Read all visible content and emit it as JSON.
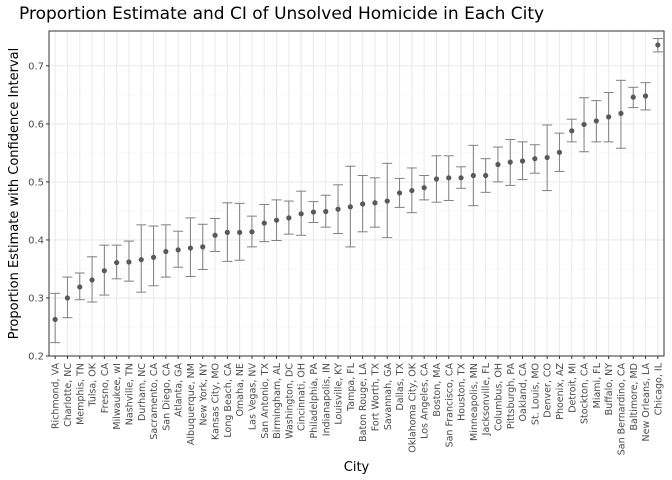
{
  "chart_data": {
    "type": "scatter",
    "title": "Proportion Estimate and CI of Unsolved Homicide in Each City",
    "xlabel": "City",
    "ylabel": "Proportion Estimate with Confidence Interval",
    "ylim": [
      0.2,
      0.76
    ],
    "yticks": [
      "0.2",
      "0.3",
      "0.4",
      "0.5",
      "0.6",
      "0.7"
    ],
    "grid": true,
    "error_bars": true,
    "colors": {
      "point": "#595959",
      "errorbar": "#808080",
      "panel_border": "#333333",
      "grid_major": "#ebebeb",
      "grid_minor": "#f5f5f5"
    },
    "points": [
      {
        "city": "Richmond, VA",
        "estimate": 0.263,
        "lower": 0.223,
        "upper": 0.308
      },
      {
        "city": "Charlotte, NC",
        "estimate": 0.3,
        "lower": 0.266,
        "upper": 0.336
      },
      {
        "city": "Memphis, TN",
        "estimate": 0.319,
        "lower": 0.297,
        "upper": 0.343
      },
      {
        "city": "Tulsa, OK",
        "estimate": 0.331,
        "lower": 0.293,
        "upper": 0.371
      },
      {
        "city": "Fresno, CA",
        "estimate": 0.347,
        "lower": 0.305,
        "upper": 0.391
      },
      {
        "city": "Milwaukee, wI",
        "estimate": 0.361,
        "lower": 0.333,
        "upper": 0.391
      },
      {
        "city": "Nashville, TN",
        "estimate": 0.362,
        "lower": 0.329,
        "upper": 0.398
      },
      {
        "city": "Durham, NC",
        "estimate": 0.366,
        "lower": 0.31,
        "upper": 0.426
      },
      {
        "city": "Sacramento, CA",
        "estimate": 0.37,
        "lower": 0.321,
        "upper": 0.424
      },
      {
        "city": "San Diego, CA",
        "estimate": 0.38,
        "lower": 0.336,
        "upper": 0.426
      },
      {
        "city": "Atlanta, GA",
        "estimate": 0.383,
        "lower": 0.353,
        "upper": 0.415
      },
      {
        "city": "Albuquerque, NM",
        "estimate": 0.386,
        "lower": 0.337,
        "upper": 0.438
      },
      {
        "city": "New York, NY",
        "estimate": 0.388,
        "lower": 0.349,
        "upper": 0.427
      },
      {
        "city": "Kansas City, MO",
        "estimate": 0.408,
        "lower": 0.38,
        "upper": 0.437
      },
      {
        "city": "Long Beach, CA",
        "estimate": 0.413,
        "lower": 0.363,
        "upper": 0.464
      },
      {
        "city": "Omaha, NE",
        "estimate": 0.413,
        "lower": 0.365,
        "upper": 0.463
      },
      {
        "city": "Las Vegas, NV",
        "estimate": 0.414,
        "lower": 0.388,
        "upper": 0.441
      },
      {
        "city": "San Antonio, TX",
        "estimate": 0.429,
        "lower": 0.397,
        "upper": 0.461
      },
      {
        "city": "Birmingham, AL",
        "estimate": 0.434,
        "lower": 0.399,
        "upper": 0.469
      },
      {
        "city": "Washington, DC",
        "estimate": 0.438,
        "lower": 0.41,
        "upper": 0.467
      },
      {
        "city": "Cincinnati, OH",
        "estimate": 0.445,
        "lower": 0.408,
        "upper": 0.484
      },
      {
        "city": "Philadelphia, PA",
        "estimate": 0.448,
        "lower": 0.43,
        "upper": 0.466
      },
      {
        "city": "Indianapolis, IN",
        "estimate": 0.449,
        "lower": 0.422,
        "upper": 0.477
      },
      {
        "city": "Louisville, KY",
        "estimate": 0.453,
        "lower": 0.411,
        "upper": 0.495
      },
      {
        "city": "Tampa, FL",
        "estimate": 0.457,
        "lower": 0.388,
        "upper": 0.527
      },
      {
        "city": "Baton Rouge, LA",
        "estimate": 0.462,
        "lower": 0.414,
        "upper": 0.511
      },
      {
        "city": "Fort Worth, TX",
        "estimate": 0.464,
        "lower": 0.422,
        "upper": 0.507
      },
      {
        "city": "Savannah, GA",
        "estimate": 0.467,
        "lower": 0.404,
        "upper": 0.532
      },
      {
        "city": "Dallas, TX",
        "estimate": 0.481,
        "lower": 0.456,
        "upper": 0.506
      },
      {
        "city": "Oklahoma City, OK",
        "estimate": 0.485,
        "lower": 0.447,
        "upper": 0.524
      },
      {
        "city": "Los Angeles, CA",
        "estimate": 0.49,
        "lower": 0.469,
        "upper": 0.511
      },
      {
        "city": "Boston, MA",
        "estimate": 0.505,
        "lower": 0.465,
        "upper": 0.545
      },
      {
        "city": "San Francisco, CA",
        "estimate": 0.507,
        "lower": 0.468,
        "upper": 0.545
      },
      {
        "city": "Houston, TX",
        "estimate": 0.507,
        "lower": 0.489,
        "upper": 0.526
      },
      {
        "city": "Minneapolis, MN",
        "estimate": 0.511,
        "lower": 0.459,
        "upper": 0.563
      },
      {
        "city": "Jacksonville, FL",
        "estimate": 0.511,
        "lower": 0.482,
        "upper": 0.54
      },
      {
        "city": "Columbus, OH",
        "estimate": 0.53,
        "lower": 0.5,
        "upper": 0.56
      },
      {
        "city": "Pittsburgh, PA",
        "estimate": 0.534,
        "lower": 0.494,
        "upper": 0.573
      },
      {
        "city": "Oakland, CA",
        "estimate": 0.536,
        "lower": 0.504,
        "upper": 0.569
      },
      {
        "city": "St. Louis, MO",
        "estimate": 0.54,
        "lower": 0.515,
        "upper": 0.564
      },
      {
        "city": "Denver, CO",
        "estimate": 0.542,
        "lower": 0.485,
        "upper": 0.598
      },
      {
        "city": "Phoenix, AZ",
        "estimate": 0.551,
        "lower": 0.518,
        "upper": 0.584
      },
      {
        "city": "Detroit, MI",
        "estimate": 0.588,
        "lower": 0.569,
        "upper": 0.608
      },
      {
        "city": "Stockton, CA",
        "estimate": 0.599,
        "lower": 0.552,
        "upper": 0.645
      },
      {
        "city": "Miami, FL",
        "estimate": 0.605,
        "lower": 0.569,
        "upper": 0.64
      },
      {
        "city": "Buffalo, NY",
        "estimate": 0.612,
        "lower": 0.569,
        "upper": 0.654
      },
      {
        "city": "San Bernardino, CA",
        "estimate": 0.618,
        "lower": 0.558,
        "upper": 0.675
      },
      {
        "city": "Baltimore, MD",
        "estimate": 0.646,
        "lower": 0.628,
        "upper": 0.663
      },
      {
        "city": "New Orleans, LA",
        "estimate": 0.648,
        "lower": 0.624,
        "upper": 0.671
      },
      {
        "city": "Chicago, IL",
        "estimate": 0.736,
        "lower": 0.724,
        "upper": 0.747
      }
    ]
  }
}
